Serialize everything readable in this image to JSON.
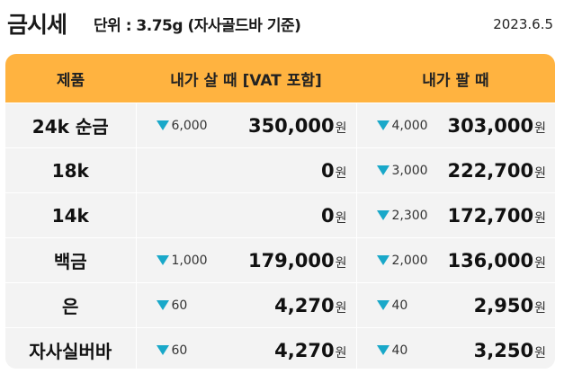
{
  "header": {
    "title": "금시세",
    "unit": "단위 : 3.75g (자사골드바 기준)",
    "date": "2023.6.5"
  },
  "table": {
    "columns": [
      "제품",
      "내가 살 때 [VAT 포함]",
      "내가 팔 때"
    ],
    "currency": "원",
    "rows": [
      {
        "product": "24k 순금",
        "buy_change": "6,000",
        "buy_price": "350,000",
        "sell_change": "4,000",
        "sell_price": "303,000"
      },
      {
        "product": "18k",
        "buy_change": "",
        "buy_price": "0",
        "sell_change": "3,000",
        "sell_price": "222,700"
      },
      {
        "product": "14k",
        "buy_change": "",
        "buy_price": "0",
        "sell_change": "2,300",
        "sell_price": "172,700"
      },
      {
        "product": "백금",
        "buy_change": "1,000",
        "buy_price": "179,000",
        "sell_change": "2,000",
        "sell_price": "136,000"
      },
      {
        "product": "은",
        "buy_change": "60",
        "buy_price": "4,270",
        "sell_change": "40",
        "sell_price": "2,950"
      },
      {
        "product": "자사실버바",
        "buy_change": "60",
        "buy_price": "4,270",
        "sell_change": "40",
        "sell_price": "3,250"
      }
    ]
  },
  "colors": {
    "header_bg": "#ffb340",
    "cell_bg": "#f3f3f3",
    "down_arrow": "#19a8c9"
  },
  "icons": {
    "change_indicator": "down-triangle-icon"
  }
}
